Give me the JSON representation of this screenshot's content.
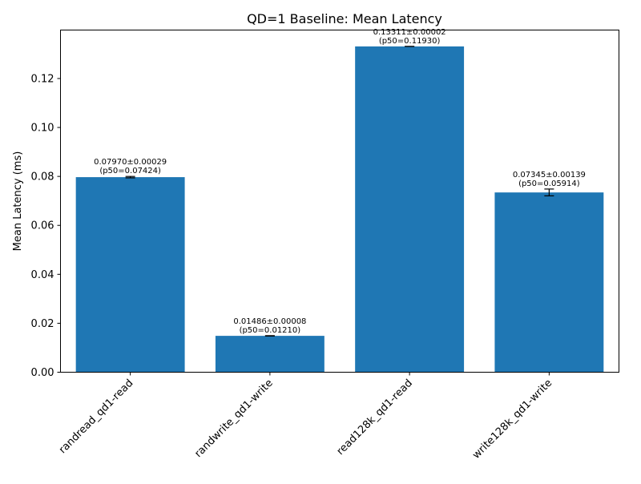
{
  "chart_data": {
    "type": "bar",
    "title": "QD=1 Baseline: Mean Latency",
    "xlabel": "",
    "ylabel": "Mean Latency (ms)",
    "categories": [
      "randread_qd1-read",
      "randwrite_qd1-write",
      "read128k_qd1-read",
      "write128k_qd1-write"
    ],
    "values": [
      0.0797,
      0.01486,
      0.13311,
      0.07345
    ],
    "errors": [
      0.00029,
      8e-05,
      2e-05,
      0.00139
    ],
    "bar_label_lines": [
      [
        "0.07970±0.00029",
        "(p50=0.07424)"
      ],
      [
        "0.01486±0.00008",
        "(p50=0.01210)"
      ],
      [
        "0.13311±0.00002",
        "(p50=0.11930)"
      ],
      [
        "0.07345±0.00139",
        "(p50=0.05914)"
      ]
    ],
    "yticks": [
      "0.00",
      "0.02",
      "0.04",
      "0.06",
      "0.08",
      "0.10",
      "0.12"
    ],
    "ylim": [
      0,
      0.1398
    ],
    "grid": false,
    "bar_color": "#1f77b4",
    "error_bar_color": "#000000"
  }
}
